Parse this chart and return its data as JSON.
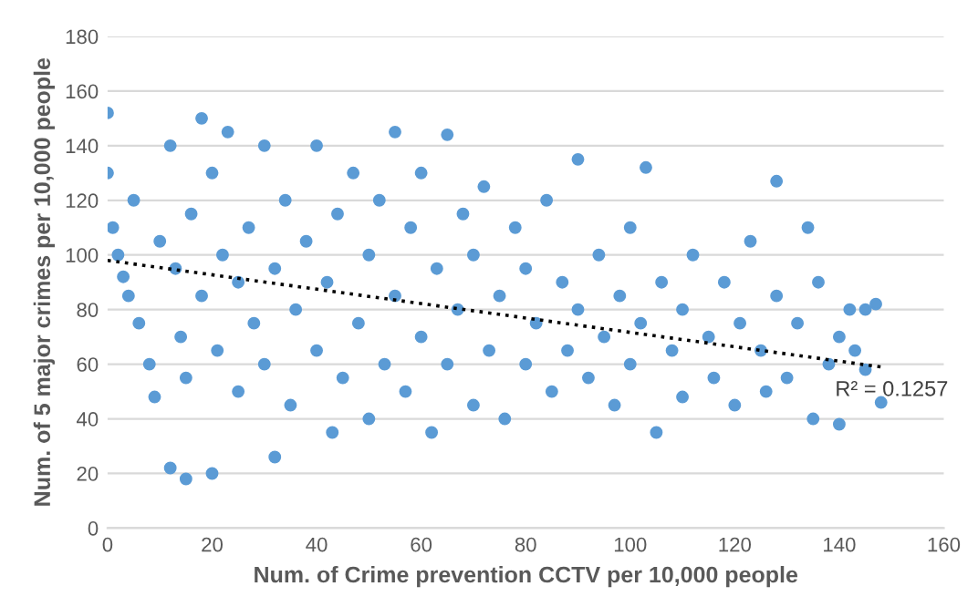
{
  "chart_data": {
    "type": "scatter",
    "xlabel": "Num. of Crime prevention CCTV per 10,000 people",
    "ylabel": "Num. of 5 major crimes per 10,000 people",
    "xlim": [
      0,
      160
    ],
    "xticks": [
      0,
      20,
      40,
      60,
      80,
      100,
      120,
      140,
      160
    ],
    "ylim": [
      0,
      180
    ],
    "yticks": [
      0,
      20,
      40,
      60,
      80,
      100,
      120,
      140,
      160,
      180
    ],
    "grid": "y",
    "annotations": [
      "R² = 0.1257"
    ],
    "series": [
      {
        "color": "#5b9bd5",
        "marker": "circle",
        "x": [
          0,
          0,
          1,
          2,
          3,
          4,
          5,
          6,
          8,
          9,
          10,
          12,
          12,
          13,
          14,
          15,
          15,
          16,
          18,
          18,
          20,
          20,
          21,
          22,
          23,
          25,
          25,
          27,
          28,
          30,
          30,
          32,
          32,
          34,
          35,
          36,
          38,
          40,
          40,
          42,
          43,
          44,
          45,
          47,
          48,
          50,
          50,
          52,
          53,
          55,
          55,
          57,
          58,
          60,
          60,
          62,
          63,
          65,
          65,
          67,
          68,
          70,
          70,
          72,
          73,
          75,
          76,
          78,
          80,
          80,
          82,
          84,
          85,
          87,
          88,
          90,
          90,
          92,
          94,
          95,
          97,
          98,
          100,
          100,
          102,
          103,
          105,
          106,
          108,
          110,
          110,
          112,
          115,
          116,
          118,
          120,
          121,
          123,
          125,
          126,
          128,
          128,
          130,
          132,
          134,
          135,
          136,
          138,
          140,
          140,
          142,
          143,
          145,
          147,
          148,
          145
        ],
        "values": [
          152,
          130,
          110,
          100,
          92,
          85,
          120,
          75,
          60,
          48,
          105,
          22,
          140,
          95,
          70,
          18,
          55,
          115,
          150,
          85,
          20,
          130,
          65,
          100,
          145,
          90,
          50,
          110,
          75,
          140,
          60,
          26,
          95,
          120,
          45,
          80,
          105,
          140,
          65,
          90,
          35,
          115,
          55,
          130,
          75,
          100,
          40,
          120,
          60,
          145,
          85,
          50,
          110,
          130,
          70,
          35,
          95,
          144,
          60,
          80,
          115,
          45,
          100,
          125,
          65,
          85,
          40,
          110,
          60,
          95,
          75,
          120,
          50,
          90,
          65,
          135,
          80,
          55,
          100,
          70,
          45,
          85,
          60,
          110,
          75,
          132,
          35,
          90,
          65,
          80,
          48,
          100,
          70,
          55,
          90,
          45,
          75,
          105,
          65,
          50,
          127,
          85,
          55,
          75,
          110,
          40,
          90,
          60,
          38,
          70,
          80,
          65,
          80,
          82,
          46,
          58
        ]
      },
      {
        "type": "line",
        "color": "#000000",
        "line_style": "dotted",
        "marker": "none",
        "x": [
          0,
          148
        ],
        "values": [
          98,
          59
        ]
      }
    ]
  }
}
